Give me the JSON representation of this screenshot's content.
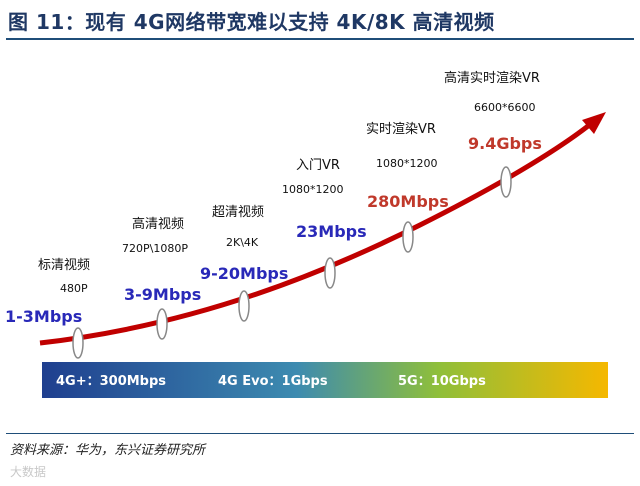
{
  "title": "图 11：现有 4G网络带宽难以支持 4K/8K 高清视频",
  "source": "资料来源：华为，东兴证券研究所",
  "watermark": "大数据",
  "colors": {
    "curve": "#c00000",
    "blue_label": "#2929b8",
    "red_label": "#c0392b"
  },
  "chart_data": {
    "type": "line",
    "points": [
      {
        "category": "标清视频",
        "resolution": "480P",
        "bandwidth": "1-3Mbps",
        "color": "blue"
      },
      {
        "category": "高清视频",
        "resolution": "720P\\1080P",
        "bandwidth": "3-9Mbps",
        "color": "blue"
      },
      {
        "category": "超清视频",
        "resolution": "2K\\4K",
        "bandwidth": "9-20Mbps",
        "color": "blue"
      },
      {
        "category": "入门VR",
        "resolution": "1080*1200",
        "bandwidth": "23Mbps",
        "color": "blue"
      },
      {
        "category": "实时渲染VR",
        "resolution": "1080*1200",
        "bandwidth": "280Mbps",
        "color": "red"
      },
      {
        "category": "高清实时渲染VR",
        "resolution": "6600*6600",
        "bandwidth": "9.4Gbps",
        "color": "red"
      }
    ],
    "network_bands": [
      {
        "label": "4G+：300Mbps"
      },
      {
        "label": "4G Evo：1Gbps"
      },
      {
        "label": "5G：10Gbps"
      }
    ]
  }
}
